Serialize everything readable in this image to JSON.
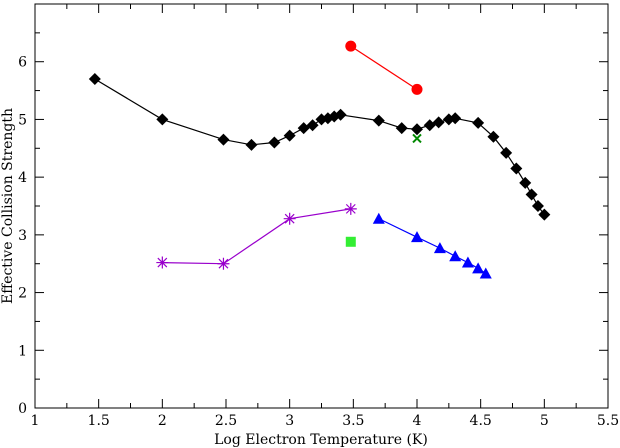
{
  "chart_data": {
    "type": "scatter",
    "title": "",
    "xlabel": "Log Electron Temperature (K)",
    "ylabel": "Effective Collision Strength",
    "xlim": [
      1,
      5.5
    ],
    "ylim": [
      0,
      7
    ],
    "xticks": [
      1,
      1.5,
      2,
      2.5,
      3,
      3.5,
      4,
      4.5,
      5,
      5.5
    ],
    "yticks": [
      0,
      1,
      2,
      3,
      4,
      5,
      6
    ],
    "grid": false,
    "legend": "none",
    "series": [
      {
        "marker": "diamond",
        "color": "#000000",
        "line": true,
        "x": [
          1.47,
          2.0,
          2.48,
          2.7,
          2.88,
          3.0,
          3.11,
          3.18,
          3.25,
          3.3,
          3.35,
          3.4,
          3.7,
          3.88,
          4.0,
          4.1,
          4.17,
          4.25,
          4.3,
          4.48,
          4.6,
          4.7,
          4.78,
          4.85,
          4.9,
          4.95,
          5.0
        ],
        "y": [
          5.7,
          5.0,
          4.65,
          4.56,
          4.6,
          4.72,
          4.85,
          4.9,
          5.0,
          5.02,
          5.05,
          5.08,
          4.98,
          4.85,
          4.83,
          4.9,
          4.95,
          5.0,
          5.02,
          4.94,
          4.7,
          4.42,
          4.15,
          3.9,
          3.7,
          3.5,
          3.35
        ]
      },
      {
        "marker": "circle",
        "color": "#ff0000",
        "line": true,
        "x": [
          3.48,
          4.0
        ],
        "y": [
          6.27,
          5.52
        ]
      },
      {
        "marker": "star",
        "color": "#9900cc",
        "line": true,
        "x": [
          2.0,
          2.48,
          3.0,
          3.48
        ],
        "y": [
          2.52,
          2.5,
          3.28,
          3.45
        ]
      },
      {
        "marker": "triangle",
        "color": "#0000ff",
        "line": true,
        "x": [
          3.7,
          4.0,
          4.18,
          4.3,
          4.4,
          4.48,
          4.54
        ],
        "y": [
          3.28,
          2.96,
          2.77,
          2.63,
          2.52,
          2.42,
          2.33
        ]
      },
      {
        "marker": "square",
        "color": "#33ee33",
        "line": false,
        "x": [
          3.48
        ],
        "y": [
          2.88
        ]
      },
      {
        "marker": "x",
        "color": "#008800",
        "line": false,
        "x": [
          4.0
        ],
        "y": [
          4.67
        ]
      }
    ]
  }
}
